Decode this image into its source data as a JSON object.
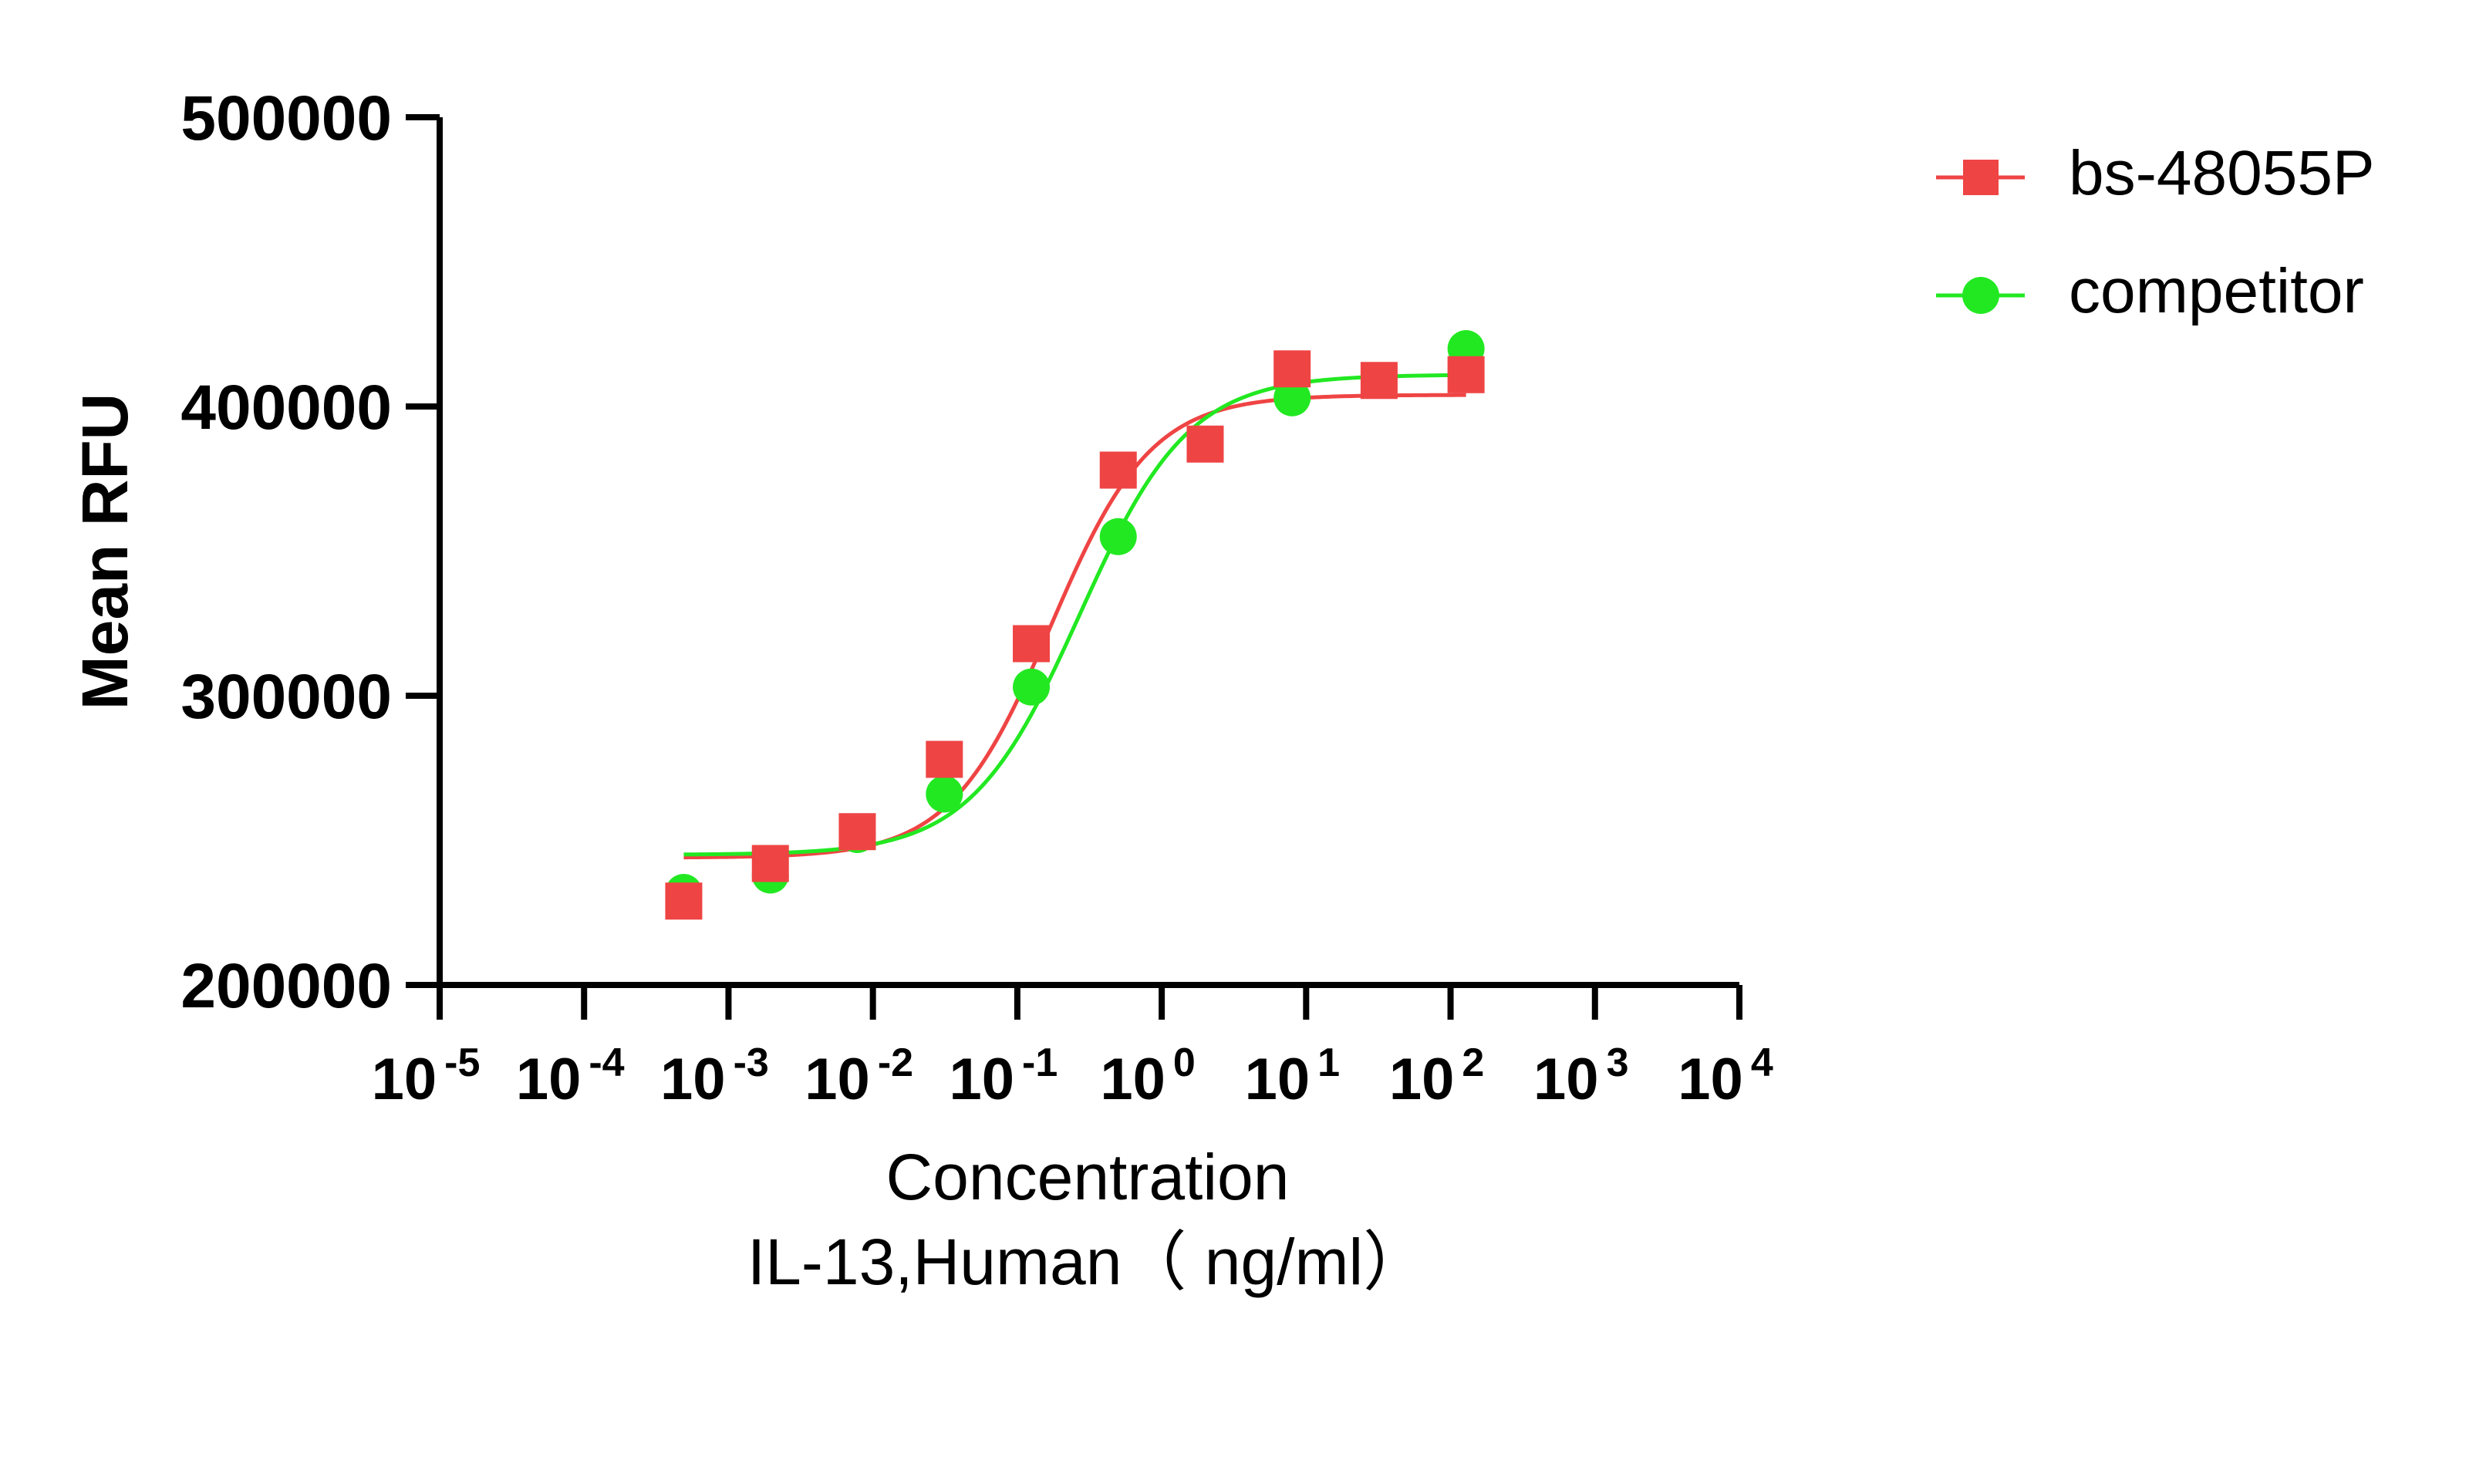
{
  "chart_data": {
    "type": "scatter",
    "title": "",
    "ylabel": "Mean RFU",
    "xlabel_lines": [
      "Concentration",
      "IL-13,Human（ ng/ml）"
    ],
    "x_scale": "log10",
    "xlim": [
      1e-05,
      10000
    ],
    "ylim": [
      200000,
      500000
    ],
    "y_ticks": [
      "200000",
      "300000",
      "400000",
      "500000"
    ],
    "x_ticks": [
      {
        "value": 1e-05,
        "base": "10",
        "exp": "-5"
      },
      {
        "value": 0.0001,
        "base": "10",
        "exp": "-4"
      },
      {
        "value": 0.001,
        "base": "10",
        "exp": "-3"
      },
      {
        "value": 0.01,
        "base": "10",
        "exp": "-2"
      },
      {
        "value": 0.1,
        "base": "10",
        "exp": "-1"
      },
      {
        "value": 1,
        "base": "10",
        "exp": "0"
      },
      {
        "value": 10,
        "base": "10",
        "exp": "1"
      },
      {
        "value": 100,
        "base": "10",
        "exp": "2"
      },
      {
        "value": 1000,
        "base": "10",
        "exp": "3"
      },
      {
        "value": 10000,
        "base": "10",
        "exp": "4"
      }
    ],
    "legend_position": "top-right",
    "grid": false,
    "series": [
      {
        "name": "bs-48055P",
        "color": "#ef4444",
        "marker": "square",
        "x": [
          0.00049,
          0.00195,
          0.0078,
          0.03125,
          0.125,
          0.5,
          2,
          8,
          32,
          128
        ],
        "y": [
          229000,
          242000,
          253000,
          278000,
          318000,
          378000,
          387000,
          413000,
          409000,
          411000
        ],
        "fit": {
          "bottom": 244000,
          "top": 404000,
          "ec50": 0.17,
          "hill": 1.25
        }
      },
      {
        "name": "competitor",
        "color": "#22e822",
        "marker": "circle",
        "x": [
          0.00049,
          0.00195,
          0.0078,
          0.03125,
          0.125,
          0.5,
          8,
          128
        ],
        "y": [
          232000,
          238000,
          252000,
          266000,
          303000,
          355000,
          403000,
          420000
        ],
        "fit": {
          "bottom": 245000,
          "top": 411000,
          "ec50": 0.27,
          "hill": 1.15
        }
      }
    ]
  }
}
